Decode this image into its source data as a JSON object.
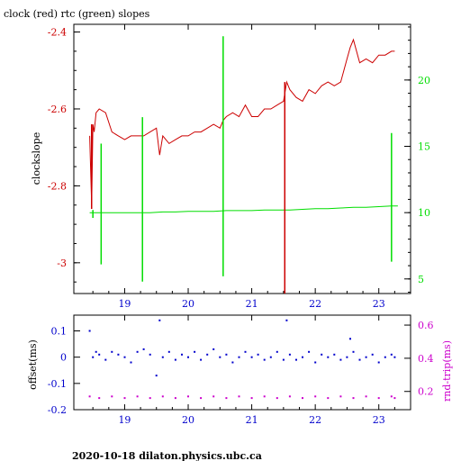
{
  "title": "clock (red) rtc (green) slopes",
  "footer": "2020-10-18  dilaton.physics.ubc.ca",
  "colors": {
    "red": "#cc0000",
    "green": "#00dd00",
    "blue": "#0000cc",
    "magenta": "#cc00cc",
    "axis": "#000000"
  },
  "chart_data": [
    {
      "type": "line",
      "ylabel": "clockslope",
      "x_ticks": [
        "19",
        "20",
        "21",
        "22",
        "23"
      ],
      "x_tick_values": [
        19,
        20,
        21,
        22,
        23
      ],
      "xlim": [
        18.2,
        23.5
      ],
      "y_left_ticks": [
        "-2.4",
        "-2.6",
        "-2.8",
        "-3"
      ],
      "y_left_tick_values": [
        -2.4,
        -2.6,
        -2.8,
        -3.0
      ],
      "ylim_left": [
        -3.08,
        -2.38
      ],
      "y_right_ticks": [
        "5",
        "10",
        "15",
        "20"
      ],
      "y_right_tick_values": [
        5,
        10,
        15,
        20
      ],
      "ylim_right": [
        3.9,
        24.2
      ],
      "series": [
        {
          "name": "clock",
          "axis": "left",
          "color": "red",
          "x": [
            18.45,
            18.48,
            18.5,
            18.52,
            18.55,
            18.6,
            18.7,
            18.8,
            18.9,
            19.0,
            19.1,
            19.2,
            19.3,
            19.4,
            19.5,
            19.55,
            19.6,
            19.7,
            19.8,
            19.9,
            20.0,
            20.1,
            20.2,
            20.3,
            20.4,
            20.5,
            20.55,
            20.6,
            20.7,
            20.8,
            20.9,
            21.0,
            21.1,
            21.2,
            21.3,
            21.4,
            21.5,
            21.55,
            21.6,
            21.7,
            21.8,
            21.9,
            22.0,
            22.1,
            22.2,
            22.3,
            22.4,
            22.5,
            22.55,
            22.6,
            22.7,
            22.8,
            22.9,
            23.0,
            23.1,
            23.2,
            23.25
          ],
          "y": [
            -2.67,
            -2.85,
            -2.64,
            -2.66,
            -2.61,
            -2.6,
            -2.61,
            -2.66,
            -2.67,
            -2.68,
            -2.67,
            -2.67,
            -2.67,
            -2.66,
            -2.65,
            -2.72,
            -2.67,
            -2.69,
            -2.68,
            -2.67,
            -2.67,
            -2.66,
            -2.66,
            -2.65,
            -2.64,
            -2.65,
            -2.63,
            -2.62,
            -2.61,
            -2.62,
            -2.59,
            -2.62,
            -2.62,
            -2.6,
            -2.6,
            -2.59,
            -2.58,
            -2.53,
            -2.55,
            -2.57,
            -2.58,
            -2.55,
            -2.56,
            -2.54,
            -2.53,
            -2.54,
            -2.53,
            -2.47,
            -2.44,
            -2.42,
            -2.48,
            -2.47,
            -2.48,
            -2.46,
            -2.46,
            -2.45,
            -2.45
          ]
        },
        {
          "name": "rtc",
          "axis": "right",
          "color": "green",
          "x": [
            18.45,
            18.6,
            18.8,
            19.0,
            19.2,
            19.4,
            19.6,
            19.8,
            20.0,
            20.2,
            20.4,
            20.6,
            20.8,
            21.0,
            21.2,
            21.4,
            21.6,
            21.8,
            22.0,
            22.2,
            22.4,
            22.6,
            22.8,
            23.0,
            23.2,
            23.3
          ],
          "y": [
            10.0,
            10.0,
            10.0,
            10.0,
            10.0,
            10.0,
            10.05,
            10.05,
            10.1,
            10.1,
            10.1,
            10.15,
            10.15,
            10.15,
            10.2,
            10.2,
            10.2,
            10.25,
            10.3,
            10.3,
            10.35,
            10.4,
            10.4,
            10.45,
            10.5,
            10.5
          ]
        }
      ],
      "spikes": [
        {
          "series": "clock",
          "x": 18.48,
          "y_top": -2.64,
          "y_bottom": -2.86
        },
        {
          "series": "clock",
          "x": 21.52,
          "y_top": -2.53,
          "y_bottom": -3.08
        },
        {
          "series": "rtc",
          "x": 18.5,
          "y_top": 10.2,
          "y_bottom": 9.6
        },
        {
          "series": "rtc",
          "x": 18.63,
          "y_top": 15.2,
          "y_bottom": 6.1
        },
        {
          "series": "rtc",
          "x": 19.28,
          "y_top": 17.2,
          "y_bottom": 4.8
        },
        {
          "series": "rtc",
          "x": 20.55,
          "y_top": 23.3,
          "y_bottom": 5.2
        },
        {
          "series": "rtc",
          "x": 23.2,
          "y_top": 16.0,
          "y_bottom": 6.3
        }
      ]
    },
    {
      "type": "scatter",
      "ylabel_left": "offset(ms)",
      "ylabel_right": "rnd-trip(ms)",
      "x_ticks": [
        "19",
        "20",
        "21",
        "22",
        "23"
      ],
      "x_tick_values": [
        19,
        20,
        21,
        22,
        23
      ],
      "xlim": [
        18.2,
        23.5
      ],
      "y_left_ticks": [
        "0.1",
        "0",
        "-0.1",
        "-0.2"
      ],
      "y_left_tick_values": [
        0.1,
        0.0,
        -0.1,
        -0.2
      ],
      "ylim_left": [
        -0.2,
        0.16
      ],
      "y_right_ticks": [
        "0.6",
        "0.4",
        "0.2"
      ],
      "y_right_tick_values": [
        0.6,
        0.4,
        0.2
      ],
      "ylim_right": [
        0.09,
        0.66
      ],
      "series": [
        {
          "name": "offset",
          "axis": "left",
          "color": "blue",
          "x": [
            18.45,
            18.5,
            18.55,
            18.6,
            18.7,
            18.8,
            18.9,
            19.0,
            19.1,
            19.2,
            19.3,
            19.4,
            19.5,
            19.55,
            19.6,
            19.7,
            19.8,
            19.9,
            20.0,
            20.1,
            20.2,
            20.3,
            20.4,
            20.5,
            20.6,
            20.7,
            20.8,
            20.9,
            21.0,
            21.1,
            21.2,
            21.3,
            21.4,
            21.5,
            21.55,
            21.6,
            21.7,
            21.8,
            21.9,
            22.0,
            22.1,
            22.2,
            22.3,
            22.4,
            22.5,
            22.55,
            22.6,
            22.7,
            22.8,
            22.9,
            23.0,
            23.1,
            23.2,
            23.25
          ],
          "y": [
            0.1,
            0.0,
            0.02,
            0.01,
            -0.01,
            0.02,
            0.01,
            0.0,
            -0.02,
            0.02,
            0.03,
            0.01,
            -0.07,
            0.14,
            0.0,
            0.02,
            -0.01,
            0.01,
            0.0,
            0.02,
            -0.01,
            0.01,
            0.03,
            0.0,
            0.01,
            -0.02,
            0.0,
            0.02,
            0.0,
            0.01,
            -0.01,
            0.0,
            0.02,
            -0.01,
            0.14,
            0.01,
            -0.01,
            0.0,
            0.02,
            -0.02,
            0.01,
            0.0,
            0.01,
            -0.01,
            0.0,
            0.07,
            0.02,
            -0.01,
            0.0,
            0.01,
            -0.02,
            0.0,
            0.01,
            0.0
          ]
        },
        {
          "name": "rnd-trip",
          "axis": "right",
          "color": "magenta",
          "x": [
            18.45,
            18.6,
            18.8,
            19.0,
            19.2,
            19.4,
            19.6,
            19.8,
            20.0,
            20.2,
            20.4,
            20.6,
            20.8,
            21.0,
            21.2,
            21.4,
            21.6,
            21.8,
            22.0,
            22.2,
            22.4,
            22.6,
            22.8,
            23.0,
            23.2,
            23.25
          ],
          "y": [
            0.17,
            0.16,
            0.17,
            0.16,
            0.17,
            0.16,
            0.17,
            0.16,
            0.17,
            0.16,
            0.17,
            0.16,
            0.17,
            0.16,
            0.17,
            0.16,
            0.17,
            0.16,
            0.17,
            0.16,
            0.17,
            0.16,
            0.17,
            0.16,
            0.17,
            0.16
          ]
        }
      ]
    }
  ]
}
